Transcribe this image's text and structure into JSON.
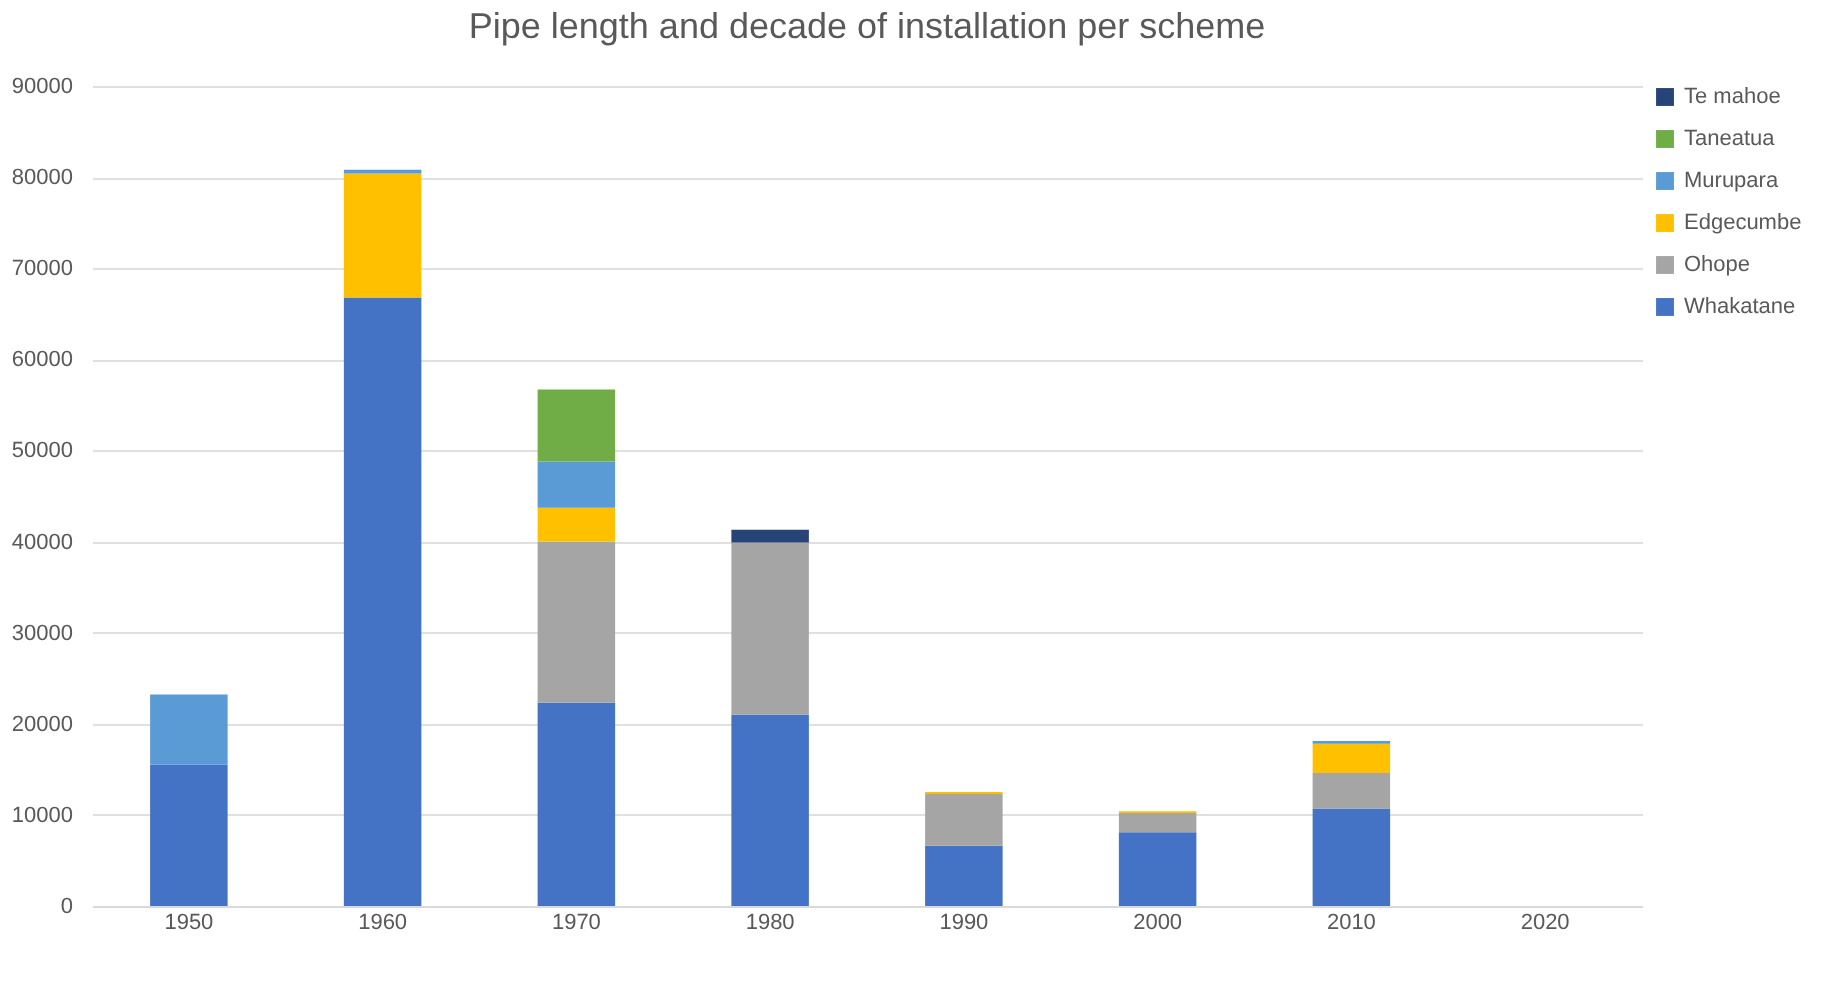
{
  "chart_data": {
    "type": "bar",
    "title": "Pipe length and decade of installation per scheme",
    "stacked": true,
    "categories": [
      "1950",
      "1960",
      "1970",
      "1980",
      "1990",
      "2000",
      "2010",
      "2020"
    ],
    "series": [
      {
        "name": "Whakatane",
        "color": "#4472c4",
        "values": [
          15500,
          66800,
          22300,
          21000,
          6600,
          8100,
          10700,
          null
        ]
      },
      {
        "name": "Ohope",
        "color": "#a5a5a5",
        "values": [
          null,
          null,
          17700,
          18900,
          5700,
          2100,
          3900,
          null
        ]
      },
      {
        "name": "Edgecumbe",
        "color": "#ffc000",
        "values": [
          null,
          13600,
          3700,
          null,
          200,
          200,
          3200,
          null
        ]
      },
      {
        "name": "Murupara",
        "color": "#5b9bd5",
        "values": [
          7700,
          400,
          5100,
          null,
          null,
          null,
          300,
          null
        ]
      },
      {
        "name": "Taneatua",
        "color": "#70ad47",
        "values": [
          null,
          null,
          7900,
          null,
          null,
          null,
          null,
          null
        ]
      },
      {
        "name": "Te mahoe",
        "color": "#264478",
        "values": [
          null,
          null,
          null,
          1400,
          null,
          null,
          null,
          null
        ]
      }
    ],
    "ylim": [
      0,
      90000
    ],
    "yticks": [
      0,
      10000,
      20000,
      30000,
      40000,
      50000,
      60000,
      70000,
      80000,
      90000
    ],
    "grid": "y",
    "legend": "right"
  }
}
